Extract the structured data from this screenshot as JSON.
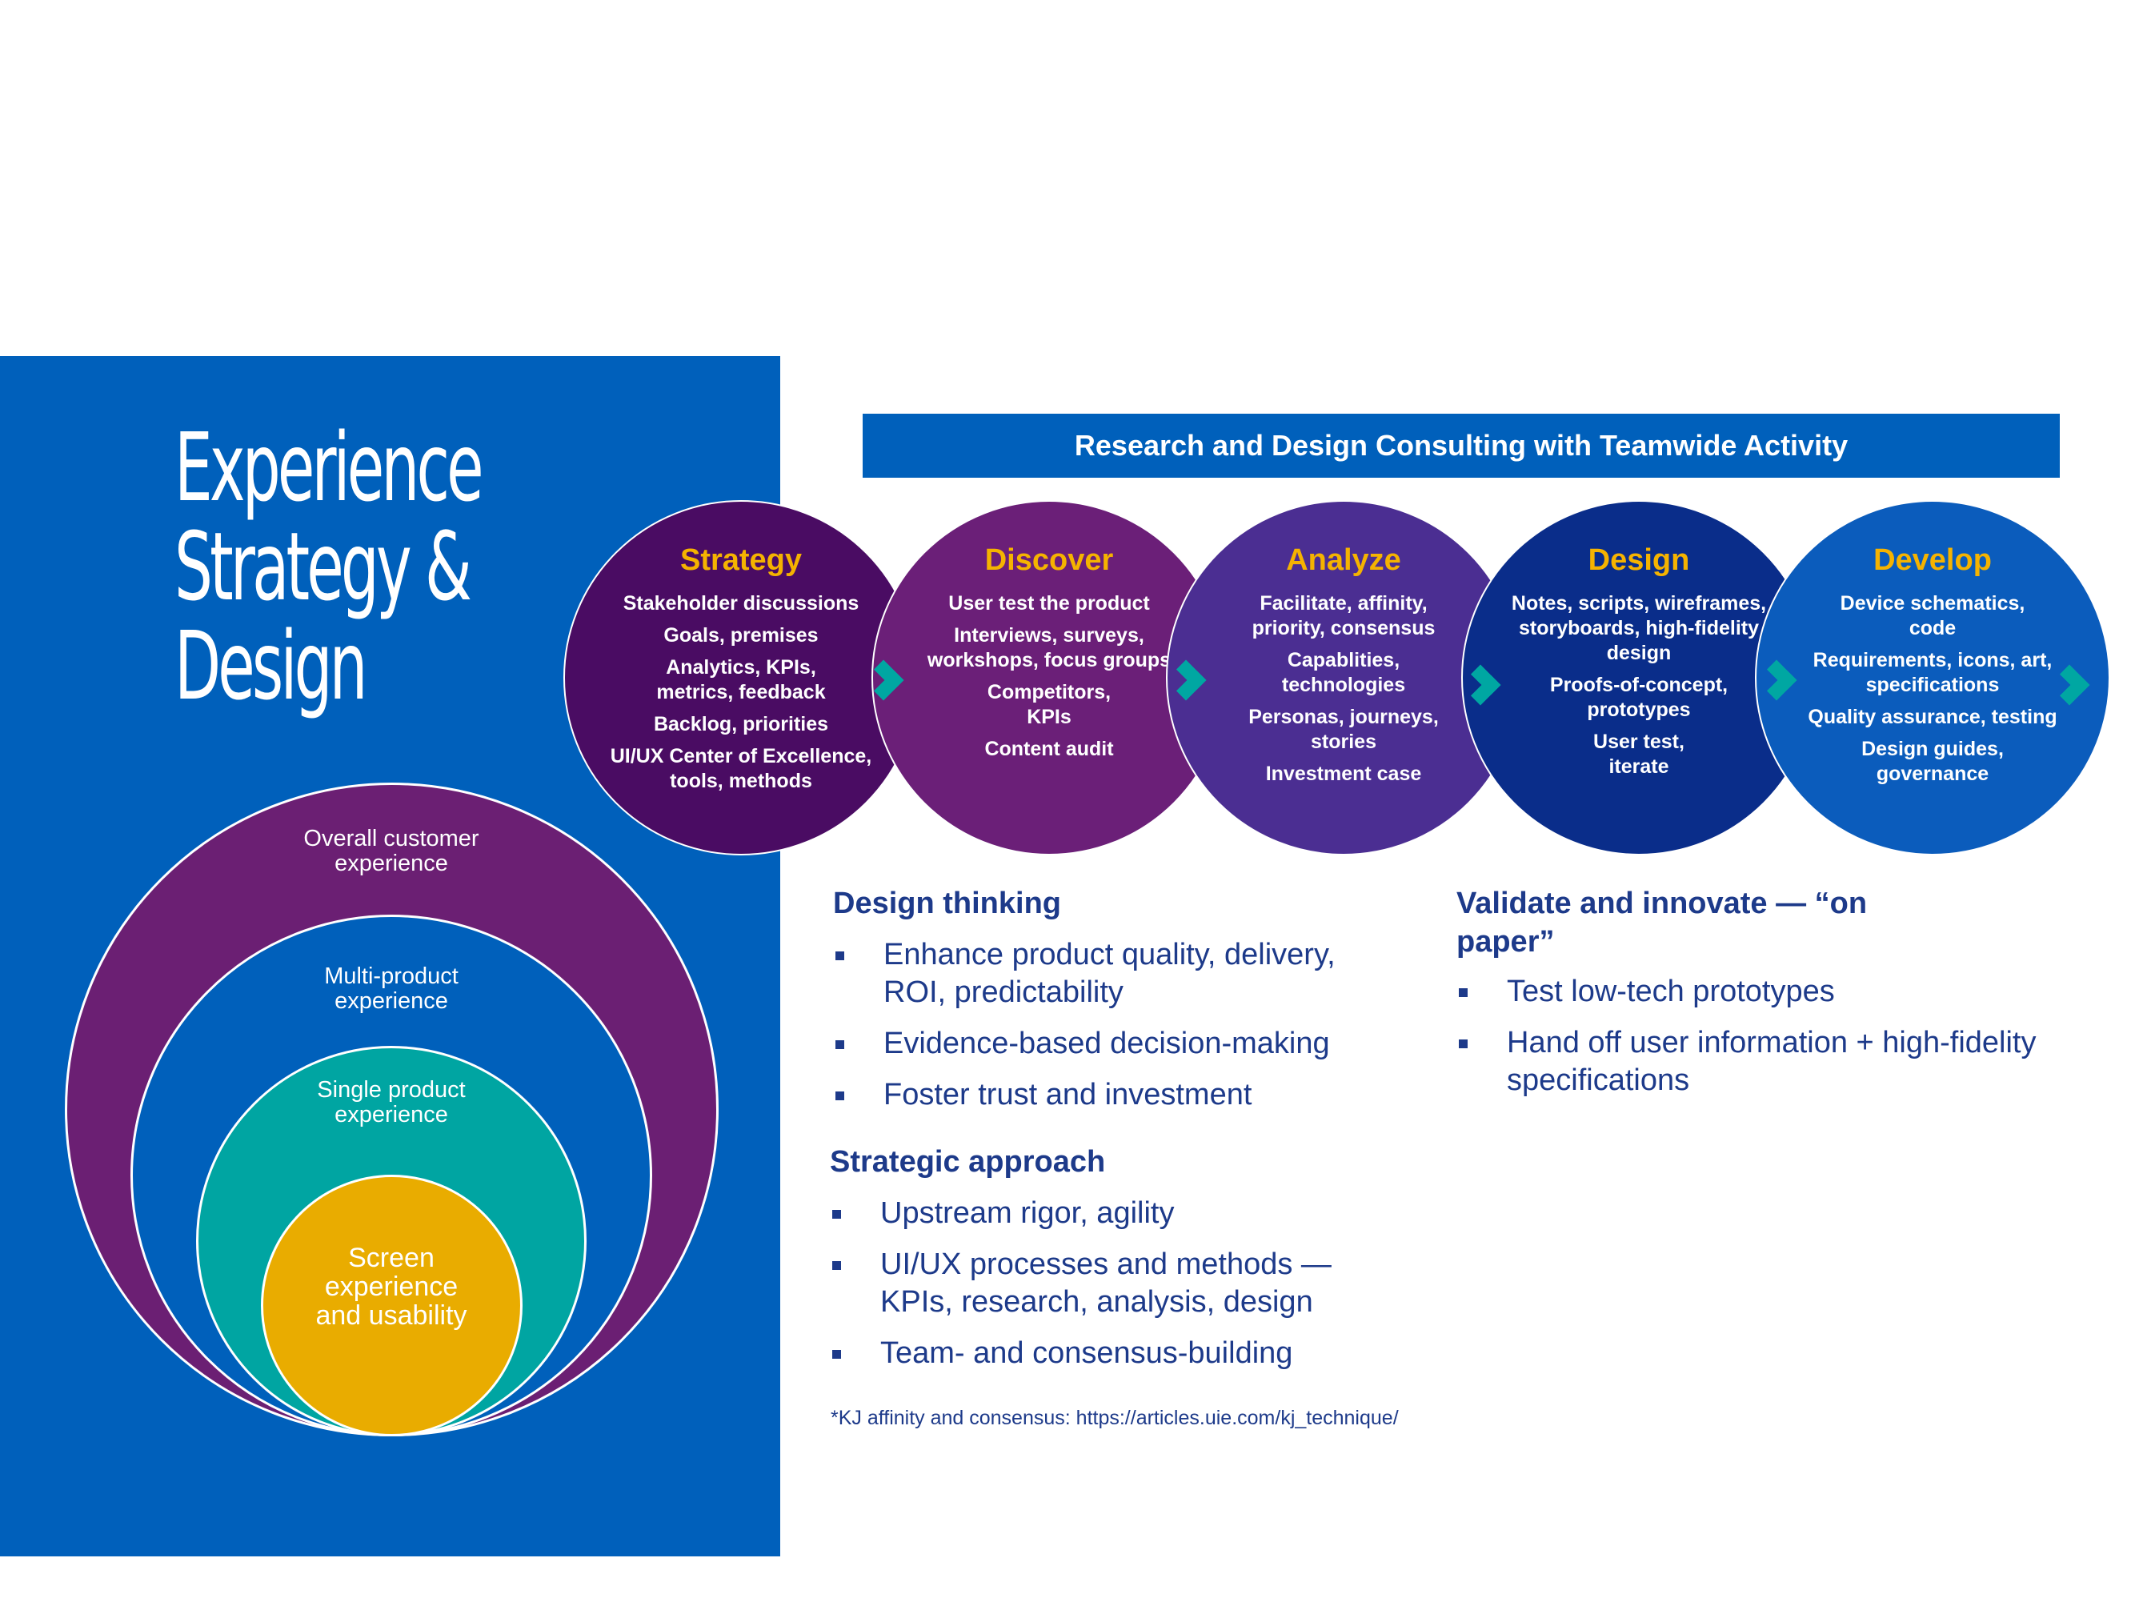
{
  "title": {
    "line1": "Experience",
    "line2": "Strategy &",
    "line3": "Design"
  },
  "circles": {
    "overall": "Overall customer experience",
    "multi": "Multi-product experience",
    "single": "Single product experience",
    "screen": "Screen experience and usability"
  },
  "banner": "Research and Design Consulting with Teamwide Activity",
  "stages": [
    {
      "title": "Strategy",
      "items": [
        "Stakeholder discussions",
        "Goals, premises",
        "Analytics, KPIs, metrics, feedback",
        "Backlog, priorities",
        "UI/UX Center of Excellence, tools, methods"
      ]
    },
    {
      "title": "Discover",
      "items": [
        "User test the product",
        "Interviews, surveys, workshops, focus groups",
        "Competitors, KPIs",
        "Content audit"
      ]
    },
    {
      "title": "Analyze",
      "items": [
        "Facilitate, affinity, priority, consensus",
        "Capablities, technologies",
        "Personas, journeys, stories",
        "Investment case"
      ]
    },
    {
      "title": "Design",
      "items": [
        "Notes, scripts, wireframes, storyboards, high-fidelity design",
        "Proofs-of-concept, prototypes",
        "User test, iterate"
      ]
    },
    {
      "title": "Develop",
      "items": [
        "Device schematics, code",
        "Requirements, icons, art, specifications",
        "Quality assurance, testing",
        "Design guides, governance"
      ]
    }
  ],
  "design_thinking": {
    "heading": "Design thinking",
    "bullets": [
      "Enhance product quality, delivery, ROI, predictability",
      "Evidence-based decision-making",
      "Foster trust and investment"
    ]
  },
  "validate": {
    "heading": "Validate and innovate — “on paper”",
    "bullets": [
      "Test low-tech prototypes",
      "Hand off user information + high-fidelity specifications"
    ]
  },
  "strategic": {
    "heading": "Strategic approach",
    "bullets": [
      "Upstream rigor, agility",
      "UI/UX processes and methods — KPIs, research, analysis, design",
      "Team- and consensus-building"
    ]
  },
  "footnote": "*KJ affinity and consensus: https://articles.uie.com/kj_technique/",
  "colors": {
    "brand_blue": "#0060bb",
    "accent_yellow": "#f5b300",
    "teal": "#00a7a2",
    "purple": "#6b1f73",
    "text_navy": "#1d3a8a",
    "stage_fills": [
      "#4a0c63",
      "#6b1f78",
      "#4b2e92",
      "#0a2d8a",
      "#0b5cbc"
    ]
  }
}
